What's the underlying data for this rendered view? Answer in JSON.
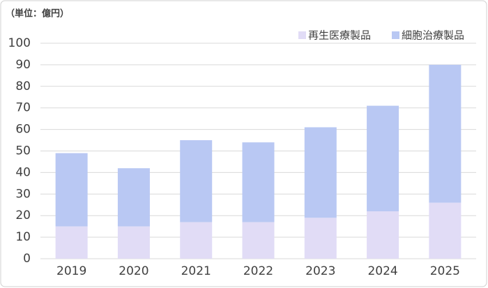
{
  "chart_data": {
    "type": "stacked_bar",
    "subtitle": "（単位：億円）",
    "categories": [
      "2019",
      "2020",
      "2021",
      "2022",
      "2023",
      "2024",
      "2025"
    ],
    "series": [
      {
        "name": "再生医療製品",
        "color": "#e1dcf6",
        "values": [
          15,
          15,
          17,
          17,
          19,
          22,
          26
        ]
      },
      {
        "name": "細胞治療製品",
        "color": "#b9c8f3",
        "values": [
          34,
          27,
          38,
          37,
          42,
          49,
          64
        ]
      }
    ],
    "ylim": [
      0,
      100
    ],
    "yticks": [
      0,
      10,
      20,
      30,
      40,
      50,
      60,
      70,
      80,
      90,
      100
    ],
    "grid": true
  }
}
